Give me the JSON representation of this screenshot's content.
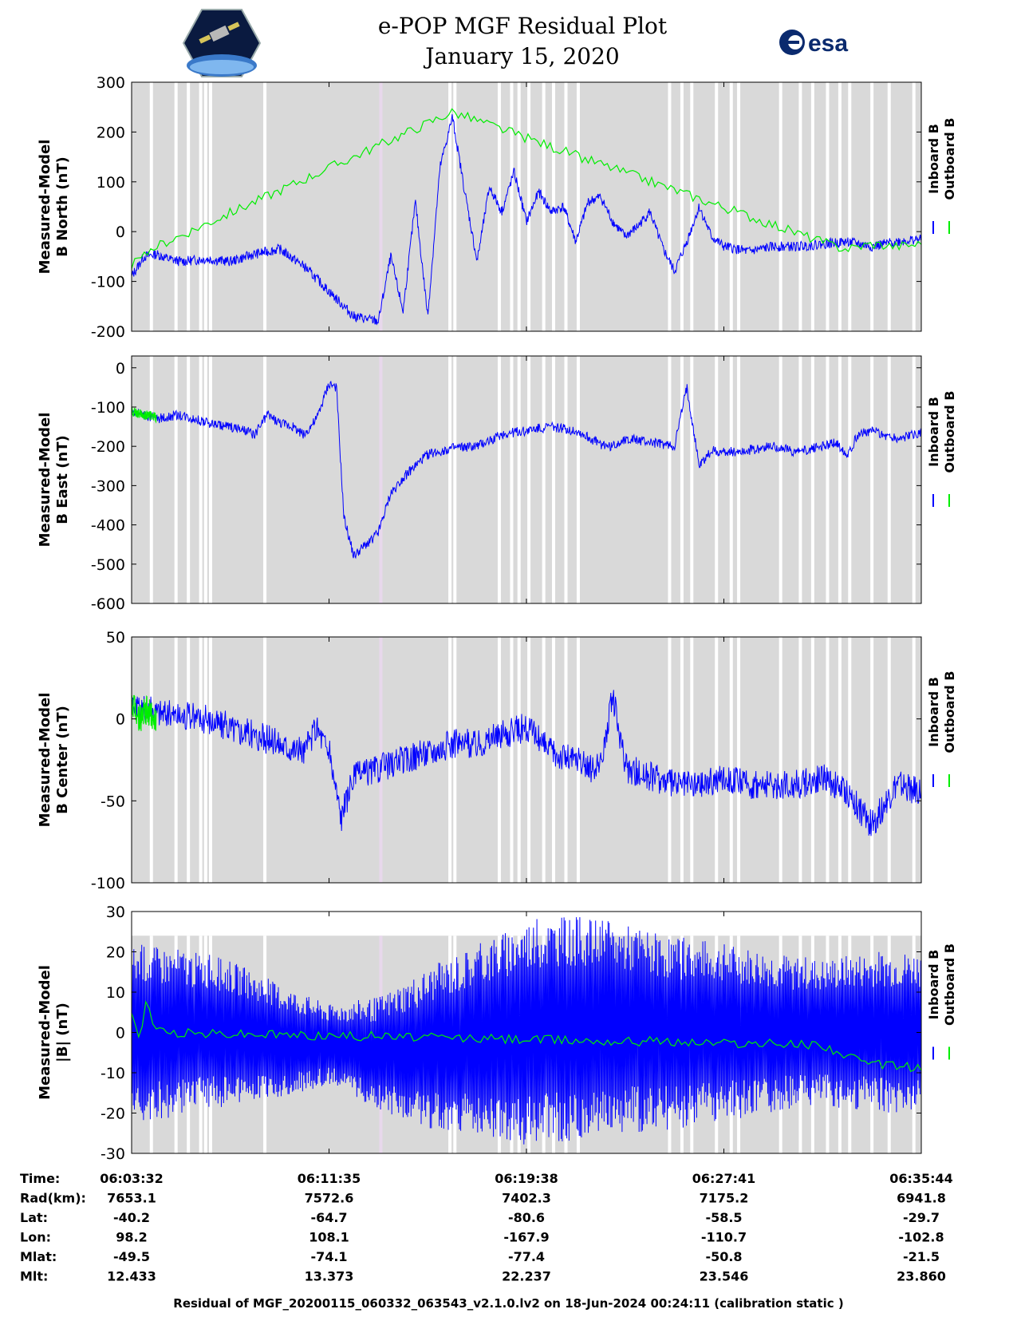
{
  "header": {
    "title": "e-POP MGF Residual Plot",
    "date": "January 15, 2020",
    "left_logo": "cassiope-satellite-logo",
    "right_logo": "esa-logo",
    "right_logo_text": "esa"
  },
  "colors": {
    "inboard": "#0000ff",
    "outboard": "#00ee00",
    "data_coverage_band": "#d9d9d9",
    "gap_band": "#ffffff",
    "special_gap_band": "#e8d8ec"
  },
  "chart_data": [
    {
      "type": "line",
      "ylabel": [
        "Measured-Model",
        "B North (nT)"
      ],
      "ylim": [
        -200,
        300
      ],
      "yticks": [
        "-200",
        "-100",
        "0",
        "100",
        "200",
        "300"
      ],
      "legend": [
        "Inboard B",
        "Outboard B"
      ],
      "legend_placement": "right",
      "series": [
        {
          "name": "Inboard B",
          "color": "#0000ff",
          "x": [
            0,
            0.5,
            1,
            1.5,
            2,
            3,
            4,
            5,
            6,
            7,
            8,
            9,
            10,
            10.5,
            11,
            11.5,
            12,
            12.5,
            13,
            13.5,
            14,
            14.5,
            15,
            15.5,
            16,
            16.5,
            17,
            17.5,
            18,
            18.5,
            19,
            19.5,
            20,
            20.5,
            21,
            21.5,
            22,
            22.5,
            23,
            23.5,
            24,
            24.5,
            25,
            26,
            27,
            28,
            29,
            30,
            31,
            32
          ],
          "y": [
            -90,
            -50,
            -45,
            -55,
            -60,
            -55,
            -60,
            -45,
            -35,
            -70,
            -120,
            -170,
            -180,
            -50,
            -160,
            60,
            -170,
            130,
            230,
            80,
            -60,
            90,
            40,
            120,
            20,
            80,
            40,
            50,
            -20,
            60,
            70,
            20,
            -10,
            10,
            40,
            -30,
            -80,
            -20,
            50,
            -10,
            -30,
            -35,
            -40,
            -30,
            -30,
            -25,
            -20,
            -30,
            -20,
            -15
          ]
        },
        {
          "name": "Outboard B",
          "color": "#00ee00",
          "x": [
            0,
            0.3,
            0.6,
            1,
            13,
            28.5,
            29,
            30,
            31,
            32
          ],
          "y": [
            -80,
            -40,
            -55,
            -30,
            240,
            -30,
            -35,
            -25,
            -30,
            -25
          ]
        }
      ]
    },
    {
      "type": "line",
      "ylabel": [
        "Measured-Model",
        "B East (nT)"
      ],
      "ylim": [
        -600,
        30
      ],
      "yticks": [
        "-600",
        "-500",
        "-400",
        "-300",
        "-200",
        "-100",
        "0"
      ],
      "legend": [
        "Inboard B",
        "Outboard B"
      ],
      "legend_placement": "right",
      "series": [
        {
          "name": "Inboard B",
          "color": "#0000ff",
          "x": [
            0,
            1,
            2,
            3,
            4,
            5,
            5.5,
            6,
            6.5,
            7,
            7.5,
            8,
            8.3,
            8.6,
            9,
            9.5,
            10,
            10.5,
            11,
            12,
            13,
            14,
            15,
            16,
            17,
            18,
            19,
            19.5,
            20,
            21,
            22,
            22.5,
            23,
            23.5,
            24,
            25,
            26,
            27,
            28,
            28.5,
            29,
            29.5,
            30,
            31,
            32
          ],
          "y": [
            -110,
            -130,
            -120,
            -140,
            -150,
            -170,
            -120,
            -140,
            -150,
            -170,
            -130,
            -40,
            -50,
            -380,
            -480,
            -450,
            -420,
            -320,
            -280,
            -220,
            -205,
            -200,
            -170,
            -160,
            -150,
            -160,
            -195,
            -200,
            -180,
            -190,
            -200,
            -50,
            -250,
            -210,
            -215,
            -210,
            -200,
            -215,
            -200,
            -190,
            -220,
            -165,
            -160,
            -180,
            -165
          ]
        },
        {
          "name": "Outboard B",
          "color": "#00ee00",
          "x": [
            0,
            0.5,
            1
          ],
          "y": [
            -110,
            -120,
            -125
          ]
        }
      ]
    },
    {
      "type": "line",
      "ylabel": [
        "Measured-Model",
        "B Center (nT)"
      ],
      "ylim": [
        -100,
        50
      ],
      "yticks": [
        "-100",
        "-50",
        "0",
        "50"
      ],
      "legend": [
        "Inboard B",
        "Outboard B"
      ],
      "legend_placement": "right",
      "series": [
        {
          "name": "Inboard B",
          "color": "#0000ff",
          "x": [
            0,
            1,
            2,
            3,
            4,
            5,
            6,
            7,
            7.5,
            8,
            8.5,
            9,
            10,
            11,
            12,
            13,
            14,
            15,
            16,
            17,
            18,
            18.5,
            19,
            19.5,
            20,
            21,
            22,
            23,
            24,
            25,
            26,
            27,
            28,
            29,
            30,
            31,
            32
          ],
          "y": [
            5,
            5,
            2,
            0,
            -5,
            -10,
            -15,
            -20,
            -5,
            -20,
            -60,
            -35,
            -30,
            -25,
            -20,
            -15,
            -15,
            -10,
            -5,
            -20,
            -25,
            -30,
            -30,
            15,
            -30,
            -35,
            -40,
            -40,
            -35,
            -40,
            -40,
            -40,
            -35,
            -45,
            -65,
            -40,
            -45
          ]
        },
        {
          "name": "Outboard B",
          "color": "#00ee00",
          "x": [
            0,
            0.3,
            0.6,
            1
          ],
          "y": [
            10,
            0,
            5,
            0
          ]
        }
      ]
    },
    {
      "type": "line",
      "ylabel": [
        "Measured-Model",
        "|B| (nT)"
      ],
      "ylim": [
        -30,
        30
      ],
      "yticks": [
        "-30",
        "-20",
        "-10",
        "0",
        "10",
        "20",
        "30"
      ],
      "legend": [
        "Inboard B",
        "Outboard B"
      ],
      "legend_placement": "right",
      "series": [
        {
          "name": "Inboard B",
          "color": "#0000ff",
          "x": [
            0,
            2,
            4,
            6,
            8,
            10,
            12,
            14,
            16,
            18,
            20,
            22,
            24,
            26,
            28,
            30,
            32
          ],
          "y": [
            0,
            0,
            0,
            -2,
            -3,
            -5,
            -4,
            -2,
            0,
            1,
            1,
            0,
            0,
            0,
            0,
            0,
            0
          ],
          "envelope": [
            22,
            21,
            18,
            14,
            10,
            14,
            20,
            24,
            28,
            28,
            26,
            24,
            22,
            20,
            18,
            20,
            20
          ]
        },
        {
          "name": "Outboard B",
          "color": "#00ee00",
          "x": [
            0,
            0.3,
            0.6,
            1,
            28,
            29,
            30,
            31,
            32
          ],
          "y": [
            5,
            -2,
            8,
            0,
            -3,
            -6,
            -8,
            -8,
            -9
          ]
        }
      ]
    }
  ],
  "time_axis": {
    "rows": [
      {
        "label": "Time:",
        "values": [
          "06:03:32",
          "06:11:35",
          "06:19:38",
          "06:27:41",
          "06:35:44"
        ]
      },
      {
        "label": "Rad(km):",
        "values": [
          "7653.1",
          "7572.6",
          "7402.3",
          "7175.2",
          "6941.8"
        ]
      },
      {
        "label": "Lat:",
        "values": [
          "-40.2",
          "-64.7",
          "-80.6",
          "-58.5",
          "-29.7"
        ]
      },
      {
        "label": "Lon:",
        "values": [
          "98.2",
          "108.1",
          "-167.9",
          "-110.7",
          "-102.8"
        ]
      },
      {
        "label": "Mlat:",
        "values": [
          "-49.5",
          "-74.1",
          "-77.4",
          "-50.8",
          "-21.5"
        ]
      },
      {
        "label": "Mlt:",
        "values": [
          "12.433",
          "13.373",
          "22.237",
          "23.546",
          "23.860"
        ]
      }
    ]
  },
  "footer": "Residual of MGF_20200115_060332_063543_v2.1.0.lv2 on 18-Jun-2024 00:24:11 (calibration static )"
}
